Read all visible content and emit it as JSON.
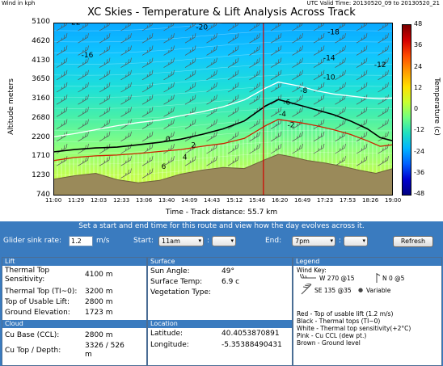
{
  "header": {
    "top_left": "Wind in kph",
    "top_right": "UTC Valid Time: 20130520_09 to 20130520_21"
  },
  "chart_data": {
    "type": "heatmap",
    "title": "XC Skies - Temperature & Lift Analysis Across Track",
    "xlabel": "Time - Track distance: 55.7 km",
    "ylabel": "Altitude meters",
    "colorbar_label": "Temperature (c)",
    "y_ticks": [
      "5100",
      "4620",
      "4130",
      "3650",
      "3160",
      "2680",
      "2200",
      "1710",
      "1230",
      "740"
    ],
    "x_ticks": [
      "11:00",
      "11:29",
      "12:03",
      "12:33",
      "13:06",
      "13:40",
      "14:09",
      "14:43",
      "15:12",
      "15:46",
      "16:20",
      "16:49",
      "17:23",
      "17:53",
      "18:26",
      "19:00"
    ],
    "colorbar_ticks": [
      "48",
      "36",
      "24",
      "12",
      "0",
      "-12",
      "-24",
      "-36",
      "-48"
    ],
    "ylim": [
      740,
      5100
    ],
    "color_range": [
      -48,
      48
    ],
    "isotherm_labels": [
      {
        "text": "-22",
        "x": 11.5,
        "y": 5050
      },
      {
        "text": "-20",
        "x": 14.5,
        "y": 4930
      },
      {
        "text": "-18",
        "x": 17.6,
        "y": 4800
      },
      {
        "text": "-16",
        "x": 11.8,
        "y": 4220
      },
      {
        "text": "-14",
        "x": 17.5,
        "y": 4150
      },
      {
        "text": "-12",
        "x": 18.7,
        "y": 3980
      },
      {
        "text": "-10",
        "x": 17.5,
        "y": 3660
      },
      {
        "text": "-8",
        "x": 16.9,
        "y": 3330
      },
      {
        "text": "-6",
        "x": 16.5,
        "y": 3030
      },
      {
        "text": "-4",
        "x": 16.4,
        "y": 2740
      },
      {
        "text": "-2",
        "x": 16.6,
        "y": 2460
      },
      {
        "text": "0",
        "x": 13.7,
        "y": 2100
      },
      {
        "text": "2",
        "x": 14.3,
        "y": 1950
      },
      {
        "text": "4",
        "x": 14.1,
        "y": 1650
      },
      {
        "text": "6",
        "x": 13.6,
        "y": 1410
      }
    ],
    "series": [
      {
        "name": "Top of usable lift (1.2 m/s)",
        "color": "#cc2200",
        "x": [
          11.0,
          11.5,
          12.0,
          12.5,
          13.0,
          13.5,
          14.0,
          14.5,
          15.0,
          15.5,
          16.0,
          16.3,
          16.8,
          17.2,
          17.6,
          18.0,
          18.4,
          18.7,
          19.0
        ],
        "y": [
          1620,
          1700,
          1740,
          1760,
          1800,
          1850,
          1900,
          1980,
          2050,
          2180,
          2500,
          2660,
          2580,
          2500,
          2400,
          2280,
          2120,
          1980,
          2020
        ]
      },
      {
        "name": "Thermal tops (TI~0)",
        "color": "#000000",
        "x": [
          11.0,
          11.5,
          12.0,
          12.5,
          13.0,
          13.5,
          14.0,
          14.5,
          15.0,
          15.5,
          16.0,
          16.3,
          16.8,
          17.2,
          17.6,
          18.0,
          18.4,
          18.7,
          19.0
        ],
        "y": [
          1840,
          1900,
          1940,
          1960,
          2020,
          2080,
          2160,
          2280,
          2420,
          2620,
          3000,
          3160,
          3020,
          2900,
          2780,
          2620,
          2420,
          2200,
          2120
        ]
      },
      {
        "name": "Thermal tops sensitivity(+2°C)",
        "color": "#ffffff",
        "x": [
          11.0,
          11.5,
          12.0,
          12.5,
          13.0,
          13.5,
          14.0,
          14.5,
          15.0,
          15.5,
          16.0,
          16.3,
          16.8,
          17.2,
          17.6,
          18.0,
          18.4,
          18.7,
          19.0
        ],
        "y": [
          2220,
          2300,
          2400,
          2500,
          2580,
          2640,
          2750,
          2850,
          2980,
          3150,
          3450,
          3600,
          3500,
          3380,
          3300,
          3250,
          3200,
          3180,
          3200
        ]
      },
      {
        "name": "Ground level",
        "color": "#9a8a5a",
        "x": [
          11.0,
          11.5,
          12.0,
          12.5,
          13.0,
          13.5,
          14.0,
          14.5,
          15.0,
          15.5,
          16.0,
          16.3,
          16.6,
          17.0,
          17.4,
          17.8,
          18.2,
          18.6,
          19.0
        ],
        "y": [
          1150,
          1240,
          1300,
          1140,
          1060,
          1120,
          1280,
          1380,
          1450,
          1420,
          1650,
          1780,
          1720,
          1620,
          1560,
          1480,
          1380,
          1300,
          1420
        ]
      }
    ],
    "marker": {
      "name": "Current time",
      "color": "#d00000",
      "x": 15.95
    },
    "grid": false,
    "legend": "none"
  },
  "banner": "Set a start and end time for this route and view how the day evolves across it.",
  "controls": {
    "sink_label": "Glider sink rate:",
    "sink_value": "1.2",
    "sink_unit": "m/s",
    "start_label": "Start:",
    "start_time": "11am",
    "start_min": "",
    "end_label": "End:",
    "end_time": "7pm",
    "end_min": "",
    "refresh_label": "Refresh"
  },
  "lift": {
    "title": "Lift",
    "rows": [
      {
        "label": "Thermal Top Sensitivity:",
        "value": "4100 m"
      },
      {
        "label": "Thermal Top (TI~0):",
        "value": "3200 m"
      },
      {
        "label": "Top of Usable Lift:",
        "value": "2800 m"
      },
      {
        "label": "Ground Elevation:",
        "value": "1723 m"
      }
    ]
  },
  "cloud": {
    "title": "Cloud",
    "rows": [
      {
        "label": "Cu Base (CCL):",
        "value": "2800 m"
      },
      {
        "label": "Cu Top / Depth:",
        "value": "3326 / 526 m"
      }
    ]
  },
  "surface": {
    "title": "Surface",
    "rows": [
      {
        "label": "Sun Angle:",
        "value": "49°"
      },
      {
        "label": "Surface Temp:",
        "value": "6.9 c"
      },
      {
        "label": "Vegetation Type:",
        "value": ""
      }
    ]
  },
  "location": {
    "title": "Location",
    "rows": [
      {
        "label": "Latitude:",
        "value": "40.4053870891"
      },
      {
        "label": "Longitude:",
        "value": "-5.35388490431"
      }
    ]
  },
  "legend": {
    "title": "Legend",
    "wind_key": "Wind Key:",
    "wind_w": "W 270 @15",
    "wind_n": "N 0 @5",
    "wind_se": "SE 135 @35",
    "wind_var": "Variable",
    "lines": [
      "Red - Top of usable lift (1.2 m/s)",
      "Black - Thermal tops (TI~0)",
      "White - Thermal top sensitivity(+2°C)",
      "Pink - Cu CCL (dew pt.)",
      "Brown - Ground level"
    ]
  }
}
